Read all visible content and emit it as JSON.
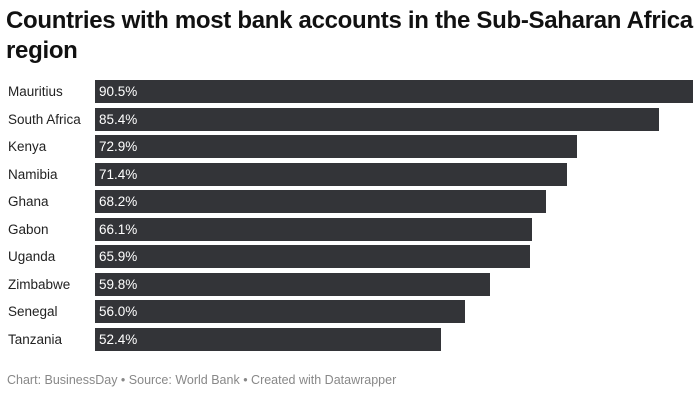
{
  "title": "Countries with most bank accounts in the Sub-Saharan Africa region",
  "footer": "Chart: BusinessDay • Source: World Bank • Created with Datawrapper",
  "colors": {
    "bar": "#333438",
    "bar_label": "#ffffff",
    "text": "#222222",
    "footer": "#888888"
  },
  "chart_data": {
    "type": "bar",
    "orientation": "horizontal",
    "title": "Countries with most bank accounts in the Sub-Saharan Africa region",
    "categories": [
      "Mauritius",
      "South Africa",
      "Kenya",
      "Namibia",
      "Ghana",
      "Gabon",
      "Uganda",
      "Zimbabwe",
      "Senegal",
      "Tanzania"
    ],
    "values": [
      90.5,
      85.4,
      72.9,
      71.4,
      68.2,
      66.1,
      65.9,
      59.8,
      56.0,
      52.4
    ],
    "value_labels": [
      "90.5%",
      "85.4%",
      "72.9%",
      "71.4%",
      "68.2%",
      "66.1%",
      "65.9%",
      "59.8%",
      "56.0%",
      "52.4%"
    ],
    "xlabel": "",
    "ylabel": "",
    "xlim": [
      0,
      90.5
    ],
    "grid": false,
    "legend": "none",
    "unit": "%"
  }
}
